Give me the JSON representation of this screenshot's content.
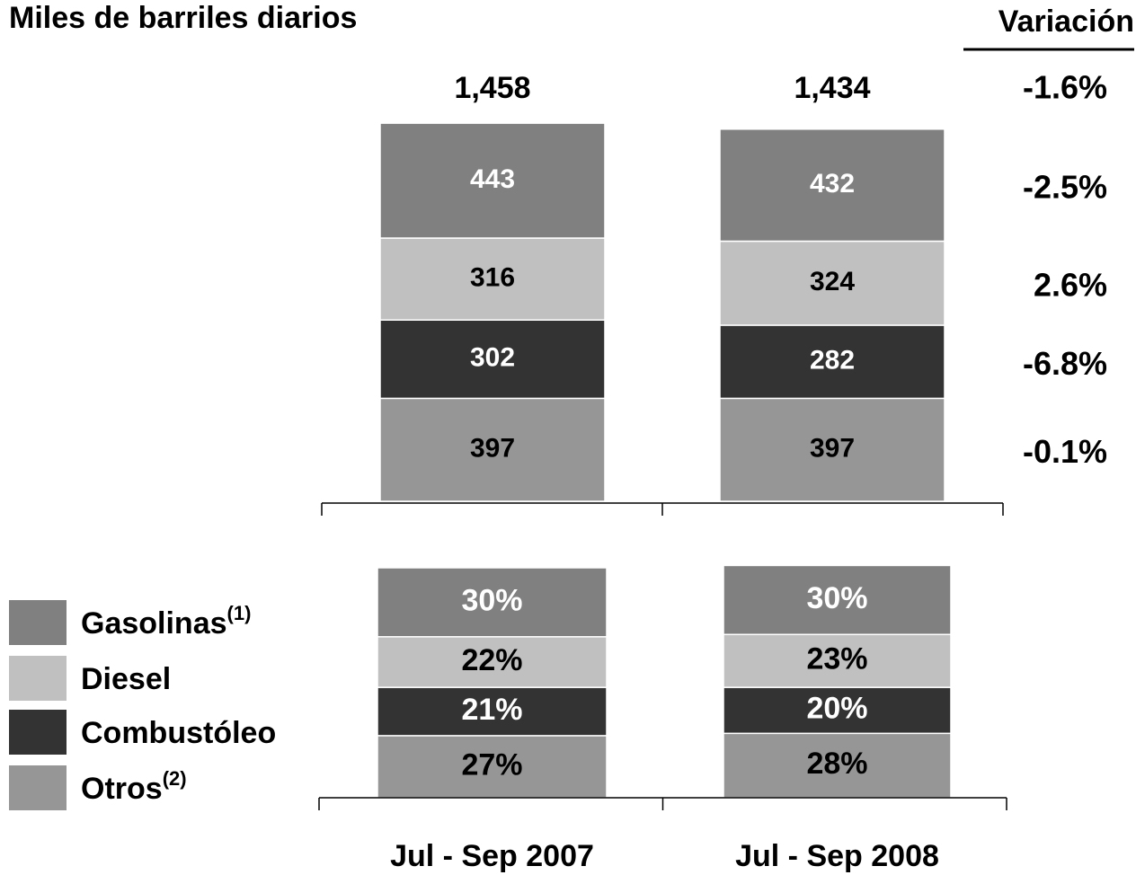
{
  "chart_data": [
    {
      "type": "stacked_bar",
      "title": "Miles de barriles diarios",
      "ylim": [
        0,
        1500
      ],
      "totals": [
        1458,
        1434
      ],
      "total_labels": [
        "1,458",
        "1,434"
      ],
      "variation_title": "Variación",
      "total_variation": -1.6,
      "total_variation_label": "-1.6%",
      "series": [
        {
          "color": "#969696",
          "label_color": "#000000",
          "values": [
            397,
            397
          ],
          "variation": -0.1,
          "variation_label": "-0.1%"
        },
        {
          "color": "#333333",
          "label_color": "#ffffff",
          "values": [
            302,
            282
          ],
          "variation": -6.8,
          "variation_label": "-6.8%"
        },
        {
          "color": "#c0c0c0",
          "label_color": "#000000",
          "values": [
            316,
            324
          ],
          "variation": 2.6,
          "variation_label": "2.6%"
        },
        {
          "color": "#808080",
          "label_color": "#ffffff",
          "values": [
            443,
            432
          ],
          "variation": -2.5,
          "variation_label": "-2.5%"
        }
      ]
    },
    {
      "type": "stacked_bar",
      "categories": [
        "Jul - Sep 2007",
        "Jul - Sep 2008"
      ],
      "ylim": [
        0,
        100
      ],
      "series": [
        {
          "name": "Otros",
          "superscript": "(2)",
          "color": "#969696",
          "label_color": "#000000",
          "values": [
            27,
            28
          ],
          "value_labels": [
            "27%",
            "28%"
          ]
        },
        {
          "name": "Combustóleo",
          "color": "#333333",
          "label_color": "#ffffff",
          "values": [
            21,
            20
          ],
          "value_labels": [
            "21%",
            "20%"
          ]
        },
        {
          "name": "Diesel",
          "color": "#c0c0c0",
          "label_color": "#000000",
          "values": [
            22,
            23
          ],
          "value_labels": [
            "22%",
            "23%"
          ]
        },
        {
          "name": "Gasolinas",
          "superscript": "(1)",
          "color": "#808080",
          "label_color": "#ffffff",
          "values": [
            30,
            30
          ],
          "value_labels": [
            "30%",
            "30%"
          ]
        }
      ]
    }
  ]
}
